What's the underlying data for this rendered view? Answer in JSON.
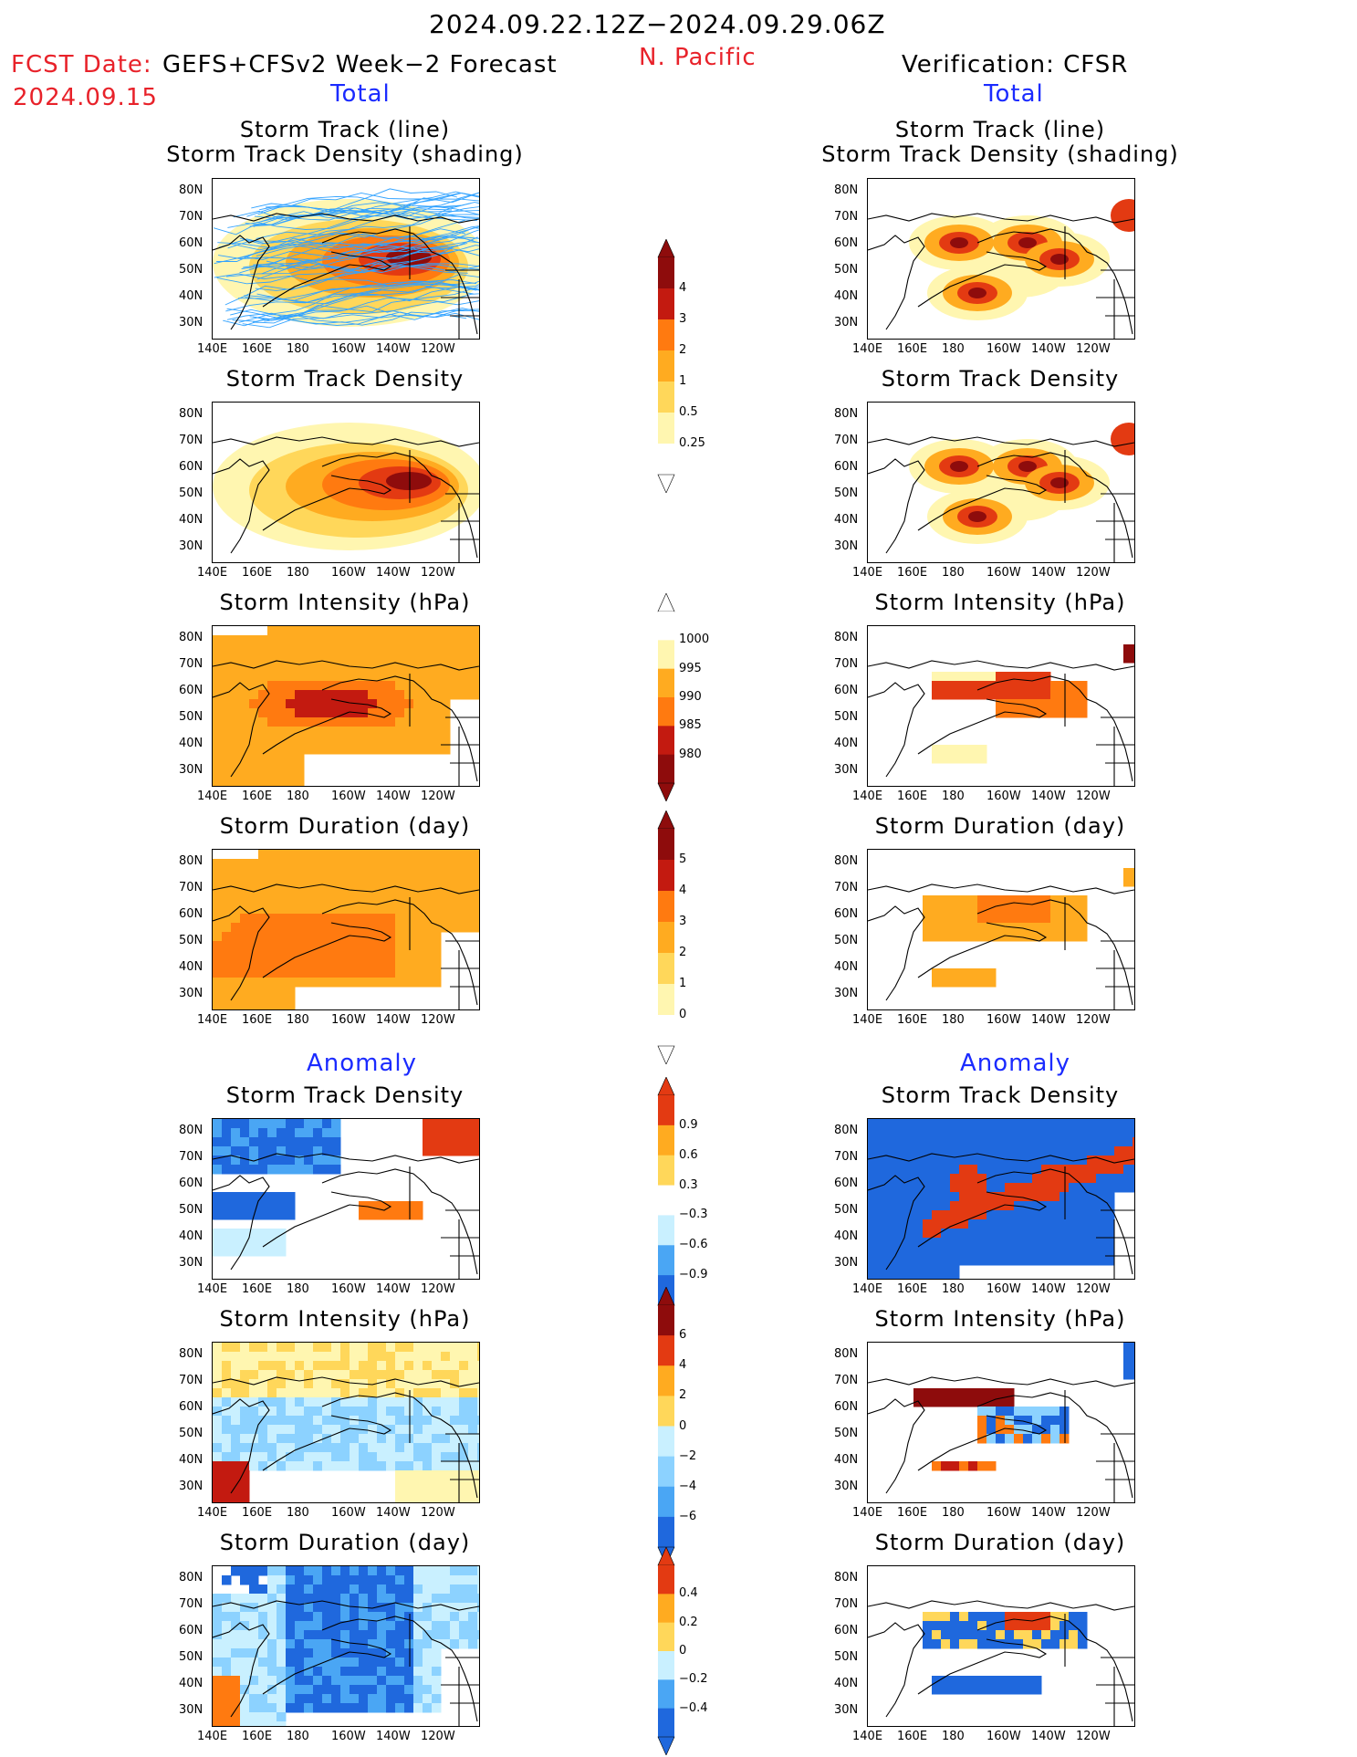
{
  "header": {
    "period": "2024.09.22.12Z−2024.09.29.06Z",
    "fcst_date_label": "FCST Date:",
    "fcst_model": "GEFS+CFSv2 Week−2 Forecast",
    "fcst_date": "2024.09.15",
    "region": "N. Pacific",
    "verification": "Verification: CFSR"
  },
  "section_labels": {
    "total_left": "Total",
    "total_right": "Total",
    "anomaly_left": "Anomaly",
    "anomaly_right": "Anomaly"
  },
  "panel_titles": {
    "track_line": "Storm Track (line)",
    "track_density_shading": "Storm Track Density (shading)",
    "density": "Storm Track Density",
    "intensity": "Storm Intensity (hPa)",
    "duration": "Storm Duration (day)"
  },
  "axes": {
    "lat_ticks": [
      "80N",
      "70N",
      "60N",
      "50N",
      "40N",
      "30N"
    ],
    "lon_ticks": [
      "140E",
      "160E",
      "180",
      "160W",
      "140W",
      "120W"
    ]
  },
  "colorbars": {
    "density_total": [
      "4",
      "3",
      "2",
      "1",
      "0.5",
      "0.25"
    ],
    "intensity_total": [
      "1000",
      "995",
      "990",
      "985",
      "980"
    ],
    "duration_total": [
      "5",
      "4",
      "3",
      "2",
      "1",
      "0"
    ],
    "density_anom": [
      "0.9",
      "0.6",
      "0.3",
      "−0.3",
      "−0.6",
      "−0.9"
    ],
    "intensity_anom": [
      "6",
      "4",
      "2",
      "0",
      "−2",
      "−4",
      "−6"
    ],
    "duration_anom": [
      "0.4",
      "0.2",
      "0",
      "−0.2",
      "−0.4"
    ]
  },
  "colors": {
    "warm": [
      "#fff6b0",
      "#ffd75a",
      "#ffab20",
      "#ff7a10",
      "#e33a12",
      "#c31a10",
      "#8e0c0c"
    ],
    "cool": [
      "#c9f0ff",
      "#8cd2ff",
      "#4aa6f4",
      "#1f68dd"
    ],
    "track": "#33a3ff"
  }
}
